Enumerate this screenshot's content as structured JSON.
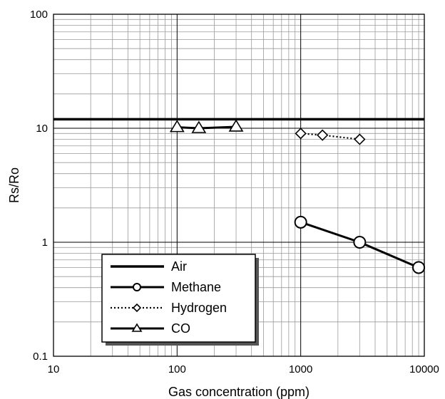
{
  "chart_data": {
    "type": "line",
    "xlabel": "Gas concentration (ppm)",
    "ylabel": "Rs/Ro",
    "xscale": "log",
    "yscale": "log",
    "xlim": [
      10,
      10000
    ],
    "ylim": [
      0.1,
      100
    ],
    "grid": "on (major and minor)",
    "legend_position": "bottom-left",
    "x_ticks": [
      "10",
      "100",
      "1000",
      "10000"
    ],
    "y_ticks": [
      "0.1",
      "1",
      "10",
      "100"
    ],
    "series": [
      {
        "name": "Air",
        "line": "solid",
        "marker": "none",
        "x": [
          10,
          10000
        ],
        "y": [
          12,
          12
        ]
      },
      {
        "name": "Methane",
        "line": "solid",
        "marker": "circle",
        "x": [
          1000,
          3000,
          9000
        ],
        "y": [
          1.5,
          1.0,
          0.6
        ]
      },
      {
        "name": "Hydrogen",
        "line": "dotted",
        "marker": "diamond",
        "x": [
          1000,
          1500,
          3000
        ],
        "y": [
          9.0,
          8.7,
          8.0
        ]
      },
      {
        "name": "CO",
        "line": "solid",
        "marker": "triangle",
        "x": [
          100,
          150,
          300
        ],
        "y": [
          10.2,
          10.0,
          10.3
        ]
      }
    ]
  }
}
